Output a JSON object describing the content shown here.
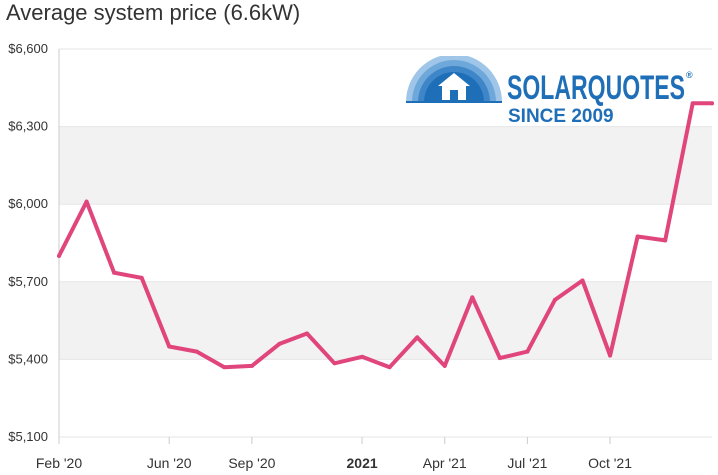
{
  "page": {
    "title": "Average system price (6.6kW)"
  },
  "logo": {
    "brand": "SOLARQUOTES",
    "registered": "®",
    "tagline": "SINCE 2009"
  },
  "colors": {
    "series": "#e0457b",
    "band": "#f2f2f2",
    "grid": "#e6e6e6",
    "logo_blue": "#1f6fb8"
  },
  "chart_data": {
    "type": "line",
    "title": "Average system price (6.6kW)",
    "xlabel": "",
    "ylabel": "",
    "ylim": [
      5100,
      6600
    ],
    "yticks": [
      5100,
      5400,
      5700,
      6000,
      6300,
      6600
    ],
    "ytick_labels": [
      "$5,100",
      "$5,400",
      "$5,700",
      "$6,000",
      "$6,300",
      "$6,600"
    ],
    "xlim": [
      0,
      23.7
    ],
    "xticks": [
      {
        "pos": 0,
        "label": "Feb '20",
        "bold": false
      },
      {
        "pos": 4,
        "label": "Jun '20",
        "bold": false
      },
      {
        "pos": 7,
        "label": "Sep '20",
        "bold": false
      },
      {
        "pos": 11,
        "label": "2021",
        "bold": true
      },
      {
        "pos": 14,
        "label": "Apr '21",
        "bold": false
      },
      {
        "pos": 17,
        "label": "Jul '21",
        "bold": false
      },
      {
        "pos": 20,
        "label": "Oct '21",
        "bold": false
      }
    ],
    "grid": true,
    "alternate_bands": true,
    "legend": "none",
    "series": [
      {
        "x": [
          0,
          1,
          2,
          3,
          4,
          5,
          6,
          7,
          8,
          9,
          10,
          11,
          12,
          13,
          14,
          15,
          16,
          17,
          18,
          19,
          20,
          21,
          22,
          23,
          23.7
        ],
        "values": [
          5800,
          6010,
          5735,
          5715,
          5450,
          5430,
          5370,
          5375,
          5460,
          5500,
          5385,
          5410,
          5370,
          5485,
          5375,
          5640,
          5405,
          5430,
          5630,
          5705,
          5415,
          5875,
          5860,
          6390,
          6390
        ]
      }
    ]
  }
}
